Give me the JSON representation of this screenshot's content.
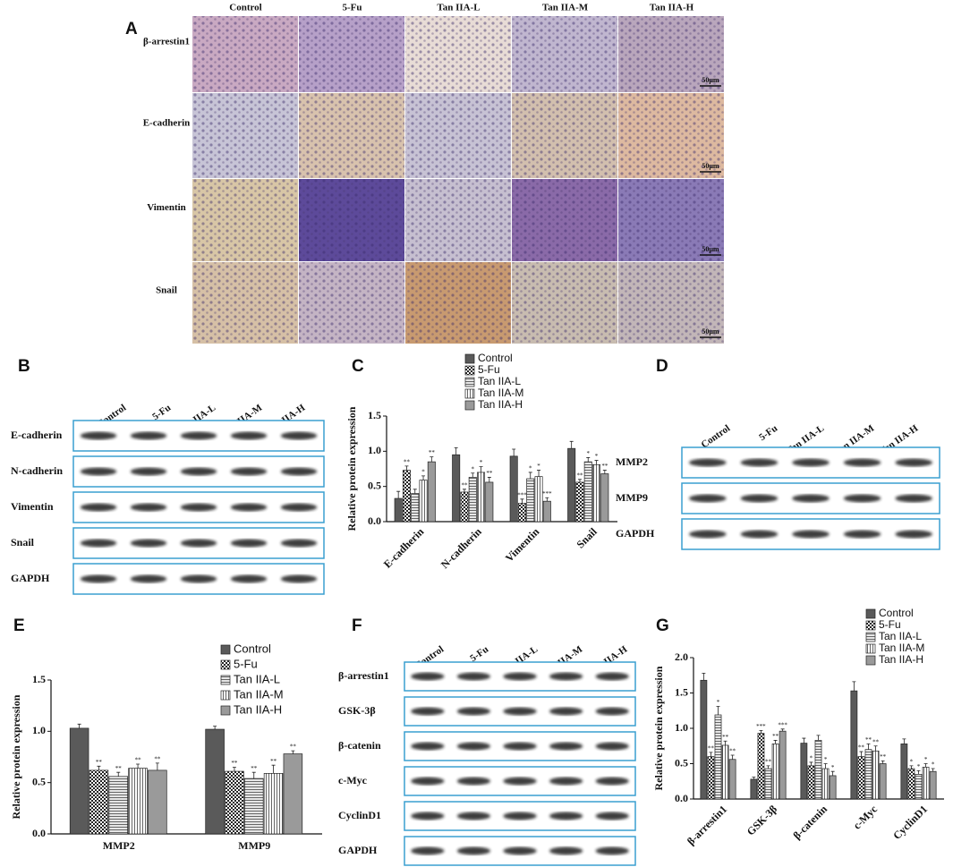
{
  "panel_a": {
    "label": "A",
    "columns": [
      "Control",
      "5-Fu",
      "Tan IIA-L",
      "Tan IIA-M",
      "Tan IIA-H"
    ],
    "rows": [
      "β-arrestin1",
      "E-cadherin",
      "Vimentin",
      "Snail"
    ],
    "scale_bar": "50μm"
  },
  "blots": [
    {
      "label": "B",
      "columns": [
        "Control",
        "5-Fu",
        "Tan IIA-L",
        "Tan IIA-M",
        "Tan IIA-H"
      ],
      "rows": [
        "E-cadherin",
        "N-cadherin",
        "Vimentin",
        "Snail",
        "GAPDH"
      ]
    },
    {
      "label": "D",
      "columns": [
        "Control",
        "5-Fu",
        "Tan IIA-L",
        "Tan IIA-M",
        "Tan IIA-H"
      ],
      "rows": [
        "MMP2",
        "MMP9",
        "GAPDH"
      ]
    },
    {
      "label": "F",
      "columns": [
        "Control",
        "5-Fu",
        "Tan IIA-L",
        "Tan IIA-M",
        "Tan IIA-H"
      ],
      "rows": [
        "β-arrestin1",
        "GSK-3β",
        "β-catenin",
        "c-Myc",
        "CyclinD1",
        "GAPDH"
      ]
    }
  ],
  "chart_data": [
    {
      "type": "bar",
      "panel": "C",
      "y_label": "Relative protein expression",
      "categories": [
        "E-cadherin",
        "N-cadherin",
        "Vimentin",
        "Snail"
      ],
      "ylim": [
        0,
        1.5
      ],
      "yticks": [
        {
          "value": 0,
          "label": "0.0"
        },
        0.5,
        {
          "value": 1,
          "label": "1.0"
        },
        1.5
      ],
      "series": [
        {
          "name": "Control",
          "color": "#5a5a5a",
          "pattern": "solid",
          "values": [
            0.33,
            0.95,
            0.93,
            1.04
          ],
          "errors": [
            0.1,
            0.1,
            0.1,
            0.1
          ],
          "significance": [
            null,
            null,
            null,
            null
          ]
        },
        {
          "name": "5-Fu",
          "color": "#333333",
          "pattern": "checker",
          "values": [
            0.73,
            0.42,
            0.26,
            0.56
          ],
          "errors": [
            0.06,
            0.04,
            0.06,
            0.04
          ],
          "significance": [
            "**",
            "**",
            "***",
            "**"
          ]
        },
        {
          "name": "Tan IIA-L",
          "color": "#bbbbbb",
          "pattern": "hlines",
          "values": [
            0.4,
            0.63,
            0.61,
            0.85
          ],
          "errors": [
            0.06,
            0.06,
            0.09,
            0.06
          ],
          "significance": [
            null,
            "*",
            "*",
            "*"
          ]
        },
        {
          "name": "Tan IIA-M",
          "color": "#eeeeee",
          "pattern": "vlines",
          "values": [
            0.59,
            0.7,
            0.64,
            0.81
          ],
          "errors": [
            0.06,
            0.08,
            0.09,
            0.06
          ],
          "significance": [
            "*",
            "*",
            "*",
            "*"
          ]
        },
        {
          "name": "Tan IIA-H",
          "color": "#9a9a9a",
          "pattern": "solid",
          "values": [
            0.85,
            0.56,
            0.29,
            0.68
          ],
          "errors": [
            0.07,
            0.07,
            0.05,
            0.05
          ],
          "significance": [
            "**",
            "**",
            "***",
            "**"
          ]
        }
      ]
    },
    {
      "type": "bar",
      "panel": "E",
      "y_label": "Relative protein expression",
      "categories": [
        "MMP2",
        "MMP9"
      ],
      "ylim": [
        0,
        1.5
      ],
      "yticks": [
        {
          "value": 0,
          "label": "0.0"
        },
        0.5,
        {
          "value": 1,
          "label": "1.0"
        },
        1.5
      ],
      "series": [
        {
          "name": "Control",
          "color": "#5a5a5a",
          "pattern": "solid",
          "values": [
            1.03,
            1.02
          ],
          "errors": [
            0.04,
            0.03
          ],
          "significance": [
            null,
            null
          ]
        },
        {
          "name": "5-Fu",
          "color": "#333333",
          "pattern": "checker",
          "values": [
            0.62,
            0.61
          ],
          "errors": [
            0.04,
            0.04
          ],
          "significance": [
            "**",
            "**"
          ]
        },
        {
          "name": "Tan IIA-L",
          "color": "#bbbbbb",
          "pattern": "hlines",
          "values": [
            0.56,
            0.54
          ],
          "errors": [
            0.04,
            0.06
          ],
          "significance": [
            "**",
            "**"
          ]
        },
        {
          "name": "Tan IIA-M",
          "color": "#eeeeee",
          "pattern": "vlines",
          "values": [
            0.64,
            0.59
          ],
          "errors": [
            0.04,
            0.08
          ],
          "significance": [
            "**",
            "**"
          ]
        },
        {
          "name": "Tan IIA-H",
          "color": "#9a9a9a",
          "pattern": "solid",
          "values": [
            0.62,
            0.78
          ],
          "errors": [
            0.07,
            0.03
          ],
          "significance": [
            "**",
            "**"
          ]
        }
      ]
    },
    {
      "type": "bar",
      "panel": "G",
      "y_label": "Relative protein expression",
      "categories": [
        "β-arrestin1",
        "GSK-3β",
        "β-catenin",
        "c-Myc",
        "CyclinD1"
      ],
      "ylim": [
        0,
        2
      ],
      "yticks": [
        {
          "value": 0,
          "label": "0.0"
        },
        0.5,
        {
          "value": 1,
          "label": "1.0"
        },
        1.5,
        {
          "value": 2,
          "label": "2.0"
        }
      ],
      "series": [
        {
          "name": "Control",
          "color": "#5a5a5a",
          "pattern": "solid",
          "values": [
            1.68,
            0.28,
            0.79,
            1.53,
            0.78
          ],
          "errors": [
            0.1,
            0.03,
            0.07,
            0.13,
            0.07
          ],
          "significance": [
            null,
            null,
            null,
            null,
            null
          ]
        },
        {
          "name": "5-Fu",
          "color": "#333333",
          "pattern": "checker",
          "values": [
            0.6,
            0.93,
            0.47,
            0.6,
            0.43
          ],
          "errors": [
            0.06,
            0.04,
            0.05,
            0.07,
            0.04
          ],
          "significance": [
            "**",
            "***",
            "*",
            "**",
            "*"
          ]
        },
        {
          "name": "Tan IIA-L",
          "color": "#bbbbbb",
          "pattern": "hlines",
          "values": [
            1.19,
            0.43,
            0.83,
            0.7,
            0.35
          ],
          "errors": [
            0.12,
            0.04,
            0.07,
            0.08,
            0.05
          ],
          "significance": [
            "*",
            "**",
            null,
            "**",
            "*"
          ]
        },
        {
          "name": "Tan IIA-M",
          "color": "#eeeeee",
          "pattern": "vlines",
          "values": [
            0.76,
            0.78,
            0.43,
            0.68,
            0.45
          ],
          "errors": [
            0.06,
            0.05,
            0.07,
            0.07,
            0.05
          ],
          "significance": [
            "**",
            "**",
            "*",
            "**",
            "*"
          ]
        },
        {
          "name": "Tan IIA-H",
          "color": "#9a9a9a",
          "pattern": "solid",
          "values": [
            0.56,
            0.96,
            0.33,
            0.5,
            0.39
          ],
          "errors": [
            0.06,
            0.03,
            0.06,
            0.04,
            0.04
          ],
          "significance": [
            "**",
            "***",
            "*",
            "**",
            "*"
          ]
        }
      ]
    }
  ]
}
